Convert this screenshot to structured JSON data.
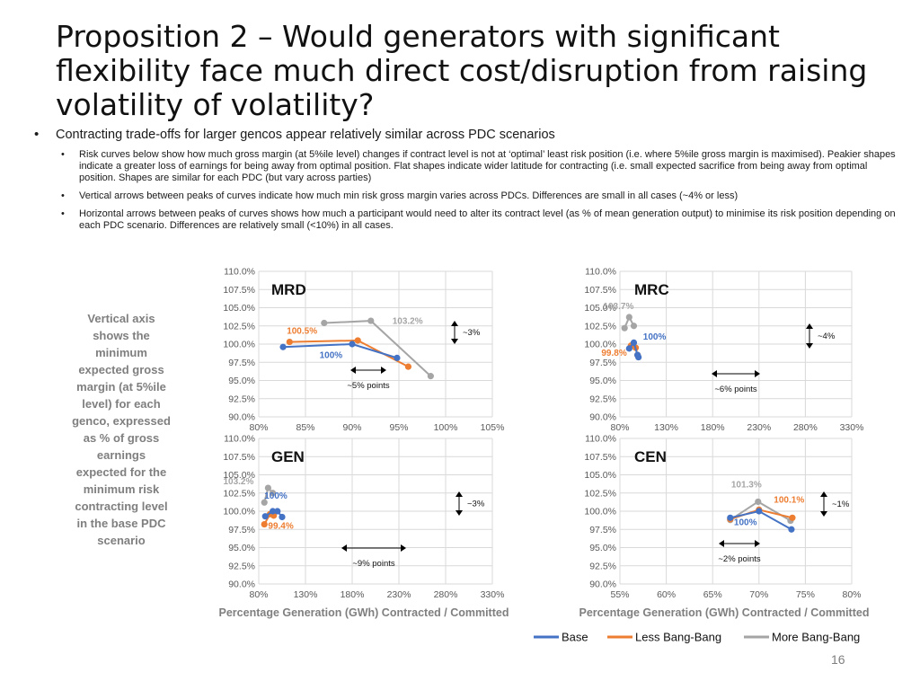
{
  "slide": {
    "title": "Proposition 2 – Would generators with significant flexibility face much direct cost/disruption from raising volatility of volatility?",
    "bullet_main": "Contracting trade-offs for larger gencos appear relatively similar across PDC scenarios",
    "sub_bullets": [
      "Risk curves below show how much gross margin (at 5%ile level) changes if contract level is not at ‘optimal’ least risk position (i.e. where 5%ile gross margin is maximised). Peakier shapes indicate a greater loss of earnings for being away from optimal position.  Flat shapes indicate wider latitude for contracting (i.e. small expected sacrifice from being away from optimal position. Shapes are similar for each PDC (but vary across parties)",
      "Vertical arrows between peaks of curves indicate how much min risk gross margin varies across PDCs.  Differences are small in all cases (~4% or less)",
      "Horizontal arrows between peaks of curves shows how much a participant would need to alter its contract level (as % of mean generation output) to minimise its risk position depending on each PDC scenario.  Differences are relatively small (<10%) in all cases."
    ],
    "side_note": "Vertical axis shows the minimum expected gross margin (at 5%ile level) for each genco, expressed as % of gross earnings expected for the minimum risk contracting level in the base PDC scenario",
    "x_caption": "Percentage Generation (GWh) Contracted / Committed",
    "page_number": "16"
  },
  "colors": {
    "Base": "#4472c4",
    "Less Bang-Bang": "#ed7d31",
    "More Bang-Bang": "#a5a5a5"
  },
  "legend": [
    "Base",
    "Less Bang-Bang",
    "More Bang-Bang"
  ],
  "chart_data": [
    {
      "id": "MRD",
      "type": "line",
      "title": "MRD",
      "xlim": [
        0.8,
        1.05
      ],
      "xticks": [
        0.8,
        0.85,
        0.9,
        0.95,
        1.0,
        1.05
      ],
      "xtick_labels": [
        "80%",
        "85%",
        "90%",
        "95%",
        "100%",
        "105%"
      ],
      "ylim": [
        0.9,
        1.1
      ],
      "ytick_labels": [
        "90.0%",
        "92.5%",
        "95.0%",
        "97.5%",
        "100.0%",
        "102.5%",
        "105.0%",
        "107.5%",
        "110.0%"
      ],
      "series": [
        {
          "name": "Base",
          "x": [
            0.826,
            0.9,
            0.948
          ],
          "y": [
            0.996,
            1.0,
            0.981
          ]
        },
        {
          "name": "Less Bang-Bang",
          "x": [
            0.833,
            0.906,
            0.96
          ],
          "y": [
            1.003,
            1.005,
            0.969
          ]
        },
        {
          "name": "More Bang-Bang",
          "x": [
            0.87,
            0.92,
            0.984
          ],
          "y": [
            1.029,
            1.032,
            0.956
          ]
        }
      ],
      "data_labels": [
        {
          "text": "100%",
          "series": "Base",
          "x": 0.865,
          "y": 0.981
        },
        {
          "text": "100.5%",
          "series": "Less Bang-Bang",
          "x": 0.83,
          "y": 1.014
        },
        {
          "text": "103.2%",
          "series": "More Bang-Bang",
          "x": 0.943,
          "y": 1.028
        }
      ],
      "v_arrow": {
        "label": "~3%"
      },
      "h_arrow": {
        "label": "~5% points"
      }
    },
    {
      "id": "MRC",
      "type": "line",
      "title": "MRC",
      "xlim": [
        0.8,
        3.3
      ],
      "xticks": [
        0.8,
        1.3,
        1.8,
        2.3,
        2.8,
        3.3
      ],
      "xtick_labels": [
        "80%",
        "130%",
        "180%",
        "230%",
        "280%",
        "330%"
      ],
      "ylim": [
        0.9,
        1.1
      ],
      "ytick_labels": [
        "90.0%",
        "92.5%",
        "95.0%",
        "97.5%",
        "100.0%",
        "102.5%",
        "105.0%",
        "107.5%",
        "110.0%"
      ],
      "series": [
        {
          "name": "Base",
          "x": [
            0.9,
            0.95,
            0.99,
            1.0
          ],
          "y": [
            0.994,
            1.002,
            0.985,
            0.982
          ]
        },
        {
          "name": "Less Bang-Bang",
          "x": [
            0.92,
            0.97,
            0.99
          ],
          "y": [
            0.998,
            0.995,
            0.985
          ]
        },
        {
          "name": "More Bang-Bang",
          "x": [
            0.85,
            0.9,
            0.95
          ],
          "y": [
            1.022,
            1.037,
            1.025
          ]
        }
      ],
      "data_labels": [
        {
          "text": "100%",
          "series": "Base",
          "x": 1.05,
          "y": 1.006
        },
        {
          "text": "99.8%",
          "series": "Less Bang-Bang",
          "x": 0.6,
          "y": 0.984
        },
        {
          "text": "103.7%",
          "series": "More Bang-Bang",
          "x": 0.62,
          "y": 1.048
        }
      ],
      "v_arrow": {
        "label": "~4%"
      },
      "h_arrow": {
        "label": "~6% points"
      }
    },
    {
      "id": "GEN",
      "type": "line",
      "title": "GEN",
      "xlim": [
        0.8,
        3.3
      ],
      "xticks": [
        0.8,
        1.3,
        1.8,
        2.3,
        2.8,
        3.3
      ],
      "xtick_labels": [
        "80%",
        "130%",
        "180%",
        "230%",
        "280%",
        "330%"
      ],
      "ylim": [
        0.9,
        1.1
      ],
      "ytick_labels": [
        "90.0%",
        "92.5%",
        "95.0%",
        "97.5%",
        "100.0%",
        "102.5%",
        "105.0%",
        "107.5%",
        "110.0%"
      ],
      "series": [
        {
          "name": "Base",
          "x": [
            0.87,
            0.95,
            1.0,
            1.05
          ],
          "y": [
            0.993,
            1.0,
            1.0,
            0.992
          ]
        },
        {
          "name": "Less Bang-Bang",
          "x": [
            0.86,
            0.92,
            0.96
          ],
          "y": [
            0.982,
            0.996,
            0.994
          ]
        },
        {
          "name": "More Bang-Bang",
          "x": [
            0.86,
            0.9,
            0.95
          ],
          "y": [
            1.012,
            1.032,
            1.025
          ]
        }
      ],
      "data_labels": [
        {
          "text": "100%",
          "series": "Base",
          "x": 0.86,
          "y": 1.017
        },
        {
          "text": "99.4%",
          "series": "Less Bang-Bang",
          "x": 0.9,
          "y": 0.976
        },
        {
          "text": "103.2%",
          "series": "More Bang-Bang",
          "x": 0.42,
          "y": 1.037
        }
      ],
      "v_arrow": {
        "label": "~3%"
      },
      "h_arrow": {
        "label": "~9% points"
      }
    },
    {
      "id": "CEN",
      "type": "line",
      "title": "CEN",
      "xlim": [
        0.55,
        0.8
      ],
      "xticks": [
        0.55,
        0.6,
        0.65,
        0.7,
        0.75,
        0.8
      ],
      "xtick_labels": [
        "55%",
        "60%",
        "65%",
        "70%",
        "75%",
        "80%"
      ],
      "ylim": [
        0.9,
        1.1
      ],
      "ytick_labels": [
        "90.0%",
        "92.5%",
        "95.0%",
        "97.5%",
        "100.0%",
        "102.5%",
        "105.0%",
        "107.5%",
        "110.0%"
      ],
      "series": [
        {
          "name": "Base",
          "x": [
            0.669,
            0.7,
            0.735
          ],
          "y": [
            0.991,
            1.0,
            0.975
          ]
        },
        {
          "name": "Less Bang-Bang",
          "x": [
            0.669,
            0.7,
            0.736
          ],
          "y": [
            0.989,
            1.002,
            0.991
          ]
        },
        {
          "name": "More Bang-Bang",
          "x": [
            0.669,
            0.699,
            0.734
          ],
          "y": [
            0.988,
            1.013,
            0.987
          ]
        }
      ],
      "data_labels": [
        {
          "text": "100%",
          "series": "Base",
          "x": 0.673,
          "y": 0.981
        },
        {
          "text": "100.1%",
          "series": "Less Bang-Bang",
          "x": 0.716,
          "y": 1.012
        },
        {
          "text": "101.3%",
          "series": "More Bang-Bang",
          "x": 0.67,
          "y": 1.033
        }
      ],
      "v_arrow": {
        "label": "~1%"
      },
      "h_arrow": {
        "label": "~2% points"
      }
    }
  ]
}
